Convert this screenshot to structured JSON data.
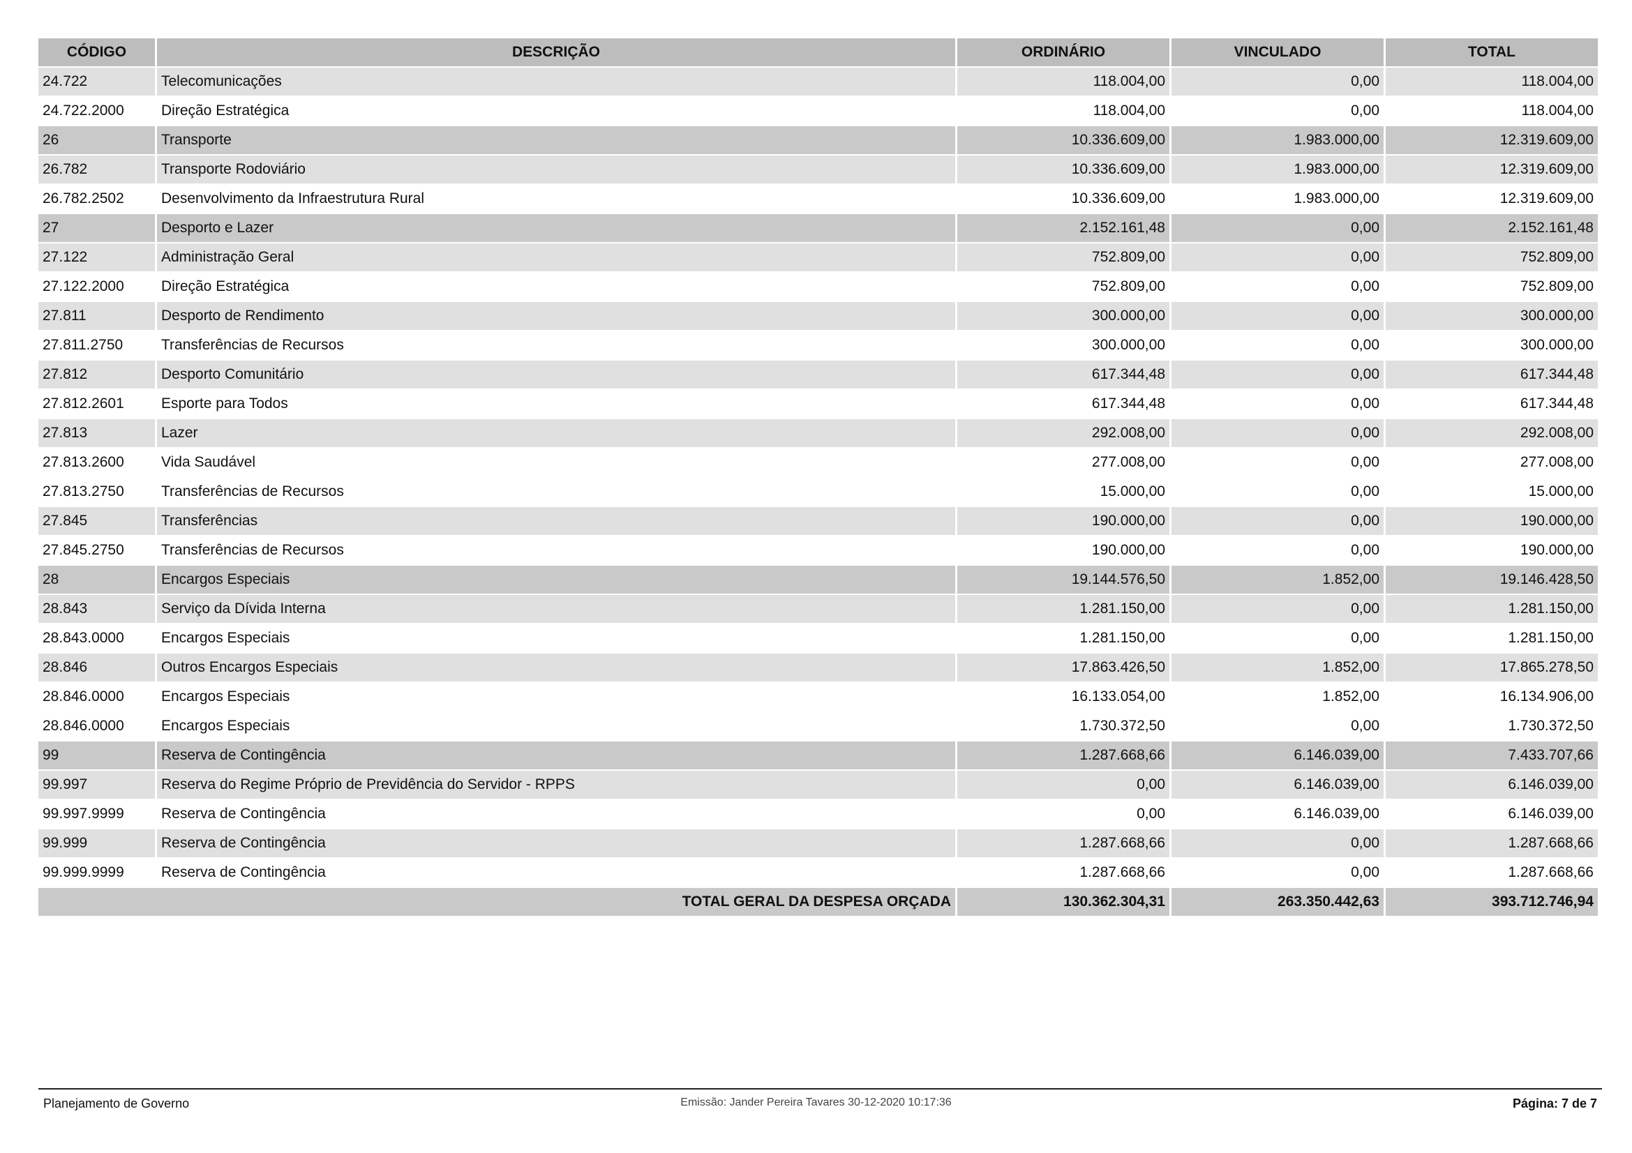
{
  "columns": [
    "CÓDIGO",
    "DESCRIÇÃO",
    "ORDINÁRIO",
    "VINCULADO",
    "TOTAL"
  ],
  "rows": [
    {
      "level": 2,
      "code": "24.722",
      "desc": "Telecomunicações",
      "ord": "118.004,00",
      "vin": "0,00",
      "tot": "118.004,00"
    },
    {
      "level": 3,
      "code": "24.722.2000",
      "desc": "Direção Estratégica",
      "ord": "118.004,00",
      "vin": "0,00",
      "tot": "118.004,00"
    },
    {
      "level": 1,
      "code": "26",
      "desc": "Transporte",
      "ord": "10.336.609,00",
      "vin": "1.983.000,00",
      "tot": "12.319.609,00"
    },
    {
      "level": 2,
      "code": "26.782",
      "desc": "Transporte Rodoviário",
      "ord": "10.336.609,00",
      "vin": "1.983.000,00",
      "tot": "12.319.609,00"
    },
    {
      "level": 3,
      "code": "26.782.2502",
      "desc": "Desenvolvimento da Infraestrutura Rural",
      "ord": "10.336.609,00",
      "vin": "1.983.000,00",
      "tot": "12.319.609,00"
    },
    {
      "level": 1,
      "code": "27",
      "desc": "Desporto e Lazer",
      "ord": "2.152.161,48",
      "vin": "0,00",
      "tot": "2.152.161,48"
    },
    {
      "level": 2,
      "code": "27.122",
      "desc": "Administração Geral",
      "ord": "752.809,00",
      "vin": "0,00",
      "tot": "752.809,00"
    },
    {
      "level": 3,
      "code": "27.122.2000",
      "desc": "Direção Estratégica",
      "ord": "752.809,00",
      "vin": "0,00",
      "tot": "752.809,00"
    },
    {
      "level": 2,
      "code": "27.811",
      "desc": "Desporto de Rendimento",
      "ord": "300.000,00",
      "vin": "0,00",
      "tot": "300.000,00"
    },
    {
      "level": 3,
      "code": "27.811.2750",
      "desc": "Transferências de Recursos",
      "ord": "300.000,00",
      "vin": "0,00",
      "tot": "300.000,00"
    },
    {
      "level": 2,
      "code": "27.812",
      "desc": "Desporto Comunitário",
      "ord": "617.344,48",
      "vin": "0,00",
      "tot": "617.344,48"
    },
    {
      "level": 3,
      "code": "27.812.2601",
      "desc": "Esporte para Todos",
      "ord": "617.344,48",
      "vin": "0,00",
      "tot": "617.344,48"
    },
    {
      "level": 2,
      "code": "27.813",
      "desc": "Lazer",
      "ord": "292.008,00",
      "vin": "0,00",
      "tot": "292.008,00"
    },
    {
      "level": 3,
      "code": "27.813.2600",
      "desc": "Vida Saudável",
      "ord": "277.008,00",
      "vin": "0,00",
      "tot": "277.008,00"
    },
    {
      "level": 3,
      "code": "27.813.2750",
      "desc": "Transferências de Recursos",
      "ord": "15.000,00",
      "vin": "0,00",
      "tot": "15.000,00"
    },
    {
      "level": 2,
      "code": "27.845",
      "desc": "Transferências",
      "ord": "190.000,00",
      "vin": "0,00",
      "tot": "190.000,00"
    },
    {
      "level": 3,
      "code": "27.845.2750",
      "desc": "Transferências de Recursos",
      "ord": "190.000,00",
      "vin": "0,00",
      "tot": "190.000,00"
    },
    {
      "level": 1,
      "code": "28",
      "desc": "Encargos Especiais",
      "ord": "19.144.576,50",
      "vin": "1.852,00",
      "tot": "19.146.428,50"
    },
    {
      "level": 2,
      "code": "28.843",
      "desc": "Serviço da Dívida Interna",
      "ord": "1.281.150,00",
      "vin": "0,00",
      "tot": "1.281.150,00"
    },
    {
      "level": 3,
      "code": "28.843.0000",
      "desc": "Encargos Especiais",
      "ord": "1.281.150,00",
      "vin": "0,00",
      "tot": "1.281.150,00"
    },
    {
      "level": 2,
      "code": "28.846",
      "desc": "Outros Encargos Especiais",
      "ord": "17.863.426,50",
      "vin": "1.852,00",
      "tot": "17.865.278,50"
    },
    {
      "level": 3,
      "code": "28.846.0000",
      "desc": "Encargos Especiais",
      "ord": "16.133.054,00",
      "vin": "1.852,00",
      "tot": "16.134.906,00"
    },
    {
      "level": 3,
      "code": "28.846.0000",
      "desc": "Encargos Especiais",
      "ord": "1.730.372,50",
      "vin": "0,00",
      "tot": "1.730.372,50"
    },
    {
      "level": 1,
      "code": "99",
      "desc": "Reserva de Contingência",
      "ord": "1.287.668,66",
      "vin": "6.146.039,00",
      "tot": "7.433.707,66"
    },
    {
      "level": 2,
      "code": "99.997",
      "desc": "Reserva do Regime Próprio de Previdência do Servidor - RPPS",
      "ord": "0,00",
      "vin": "6.146.039,00",
      "tot": "6.146.039,00"
    },
    {
      "level": 3,
      "code": "99.997.9999",
      "desc": "Reserva de Contingência",
      "ord": "0,00",
      "vin": "6.146.039,00",
      "tot": "6.146.039,00"
    },
    {
      "level": 2,
      "code": "99.999",
      "desc": "Reserva de Contingência",
      "ord": "1.287.668,66",
      "vin": "0,00",
      "tot": "1.287.668,66"
    },
    {
      "level": 3,
      "code": "99.999.9999",
      "desc": "Reserva de Contingência",
      "ord": "1.287.668,66",
      "vin": "0,00",
      "tot": "1.287.668,66"
    }
  ],
  "total": {
    "label": "TOTAL GERAL DA DESPESA ORÇADA",
    "ord": "130.362.304,31",
    "vin": "263.350.442,63",
    "tot": "393.712.746,94"
  },
  "footer": {
    "left": "Planejamento de Governo",
    "center": "Emissão: Jander Pereira Tavares 30-12-2020 10:17:36",
    "right": "Página: 7 de 7"
  }
}
